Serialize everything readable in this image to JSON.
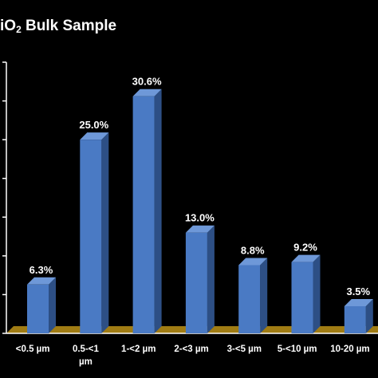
{
  "title": {
    "prefix": "iO",
    "subscript": "2",
    "suffix": " Bulk Sample"
  },
  "chart_data": {
    "type": "bar",
    "title": "iO2 Bulk Sample",
    "categories": [
      "<0.5 µm",
      "0.5-<1 µm",
      "1-<2 µm",
      "2-<3 µm",
      "3-<5 µm",
      "5-<10 µm",
      "10-20 µm"
    ],
    "category_lines": [
      [
        "<0.5 µm"
      ],
      [
        "0.5-<1",
        "µm"
      ],
      [
        "1-<2 µm"
      ],
      [
        "2-<3 µm"
      ],
      [
        "3-<5 µm"
      ],
      [
        "5-<10 µm"
      ],
      [
        "10-20 µm"
      ]
    ],
    "values": [
      6.3,
      25.0,
      30.6,
      13.0,
      8.8,
      9.2,
      3.5
    ],
    "value_labels": [
      "6.3%",
      "25.0%",
      "30.6%",
      "13.0%",
      "8.8%",
      "9.2%",
      "3.5%"
    ],
    "xlabel": "",
    "ylabel": "",
    "ylim": [
      0,
      35
    ],
    "grid": false,
    "legend": "none",
    "colors": {
      "bar_front": "#4a7ac4",
      "bar_side": "#2d4f85",
      "bar_top": "#6e98d8",
      "floor": "#a07c14",
      "axis": "#ffffff"
    }
  }
}
